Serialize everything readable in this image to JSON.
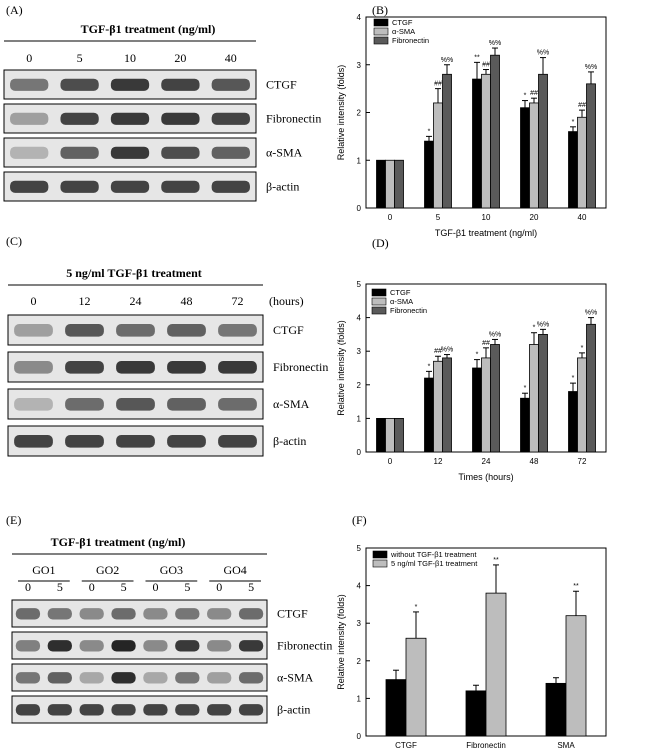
{
  "panels": {
    "A": {
      "label": "(A)",
      "header": "TGF-β1 treatment  (ng/ml)",
      "lanes": [
        "0",
        "5",
        "10",
        "20",
        "40"
      ],
      "rows": [
        "CTGF",
        "Fibronectin",
        "α-SMA",
        "β-actin"
      ]
    },
    "C": {
      "label": "(C)",
      "header": "5 ng/ml  TGF-β1 treatment",
      "lanes": [
        "0",
        "12",
        "24",
        "48",
        "72"
      ],
      "unit": "(hours)",
      "rows": [
        "CTGF",
        "Fibronectin",
        "α-SMA",
        "β-actin"
      ]
    },
    "E": {
      "label": "(E)",
      "header": "TGF-β1 treatment  (ng/ml)",
      "groups": [
        "GO1",
        "GO2",
        "GO3",
        "GO4"
      ],
      "lanes": [
        "0",
        "5",
        "0",
        "5",
        "0",
        "5",
        "0",
        "5"
      ],
      "rows": [
        "CTGF",
        "Fibronectin",
        "α-SMA",
        "β-actin"
      ]
    }
  },
  "chart_data": [
    {
      "panel": "(B)",
      "type": "bar",
      "categories": [
        "0",
        "5",
        "10",
        "20",
        "40"
      ],
      "series": [
        {
          "name": "CTGF",
          "values": [
            1.0,
            1.4,
            2.7,
            2.1,
            1.6
          ],
          "errors": [
            0,
            0.1,
            0.35,
            0.15,
            0.1
          ],
          "marks": [
            "",
            "*",
            "**",
            "*",
            "*"
          ]
        },
        {
          "name": "α-SMA",
          "values": [
            1.0,
            2.2,
            2.8,
            2.2,
            1.9
          ],
          "errors": [
            0,
            0.3,
            0.1,
            0.1,
            0.15
          ],
          "marks": [
            "",
            "##",
            "##",
            "##",
            "##"
          ]
        },
        {
          "name": "Fibronectin",
          "values": [
            1.0,
            2.8,
            3.2,
            2.8,
            2.6
          ],
          "errors": [
            0,
            0.2,
            0.15,
            0.35,
            0.25
          ],
          "marks": [
            "",
            "%%",
            "%%",
            "%%",
            "%%"
          ]
        }
      ],
      "xlabel": "TGF-β1 treatment (ng/ml)",
      "ylabel": "Relative intensity (folds)",
      "ylim": [
        0,
        4
      ],
      "yticks": [
        "0",
        "1",
        "2",
        "3",
        "4"
      ],
      "legend": "top-left"
    },
    {
      "panel": "(D)",
      "type": "bar",
      "categories": [
        "0",
        "12",
        "24",
        "48",
        "72"
      ],
      "series": [
        {
          "name": "CTGF",
          "values": [
            1.0,
            2.2,
            2.5,
            1.6,
            1.8
          ],
          "errors": [
            0,
            0.2,
            0.25,
            0.15,
            0.25
          ],
          "marks": [
            "",
            "*",
            "*",
            "*",
            "*"
          ]
        },
        {
          "name": "α-SMA",
          "values": [
            1.0,
            2.7,
            2.8,
            3.2,
            2.8
          ],
          "errors": [
            0,
            0.15,
            0.3,
            0.35,
            0.15
          ],
          "marks": [
            "",
            "##",
            "##",
            "*",
            "*"
          ]
        },
        {
          "name": "Fibronectin",
          "values": [
            1.0,
            2.8,
            3.2,
            3.5,
            3.8
          ],
          "errors": [
            0,
            0.1,
            0.15,
            0.15,
            0.2
          ],
          "marks": [
            "",
            "%%",
            "%%",
            "%%",
            "%%"
          ]
        }
      ],
      "xlabel": "Times (hours)",
      "ylabel": "Relative intensity (folds)",
      "ylim": [
        0,
        5
      ],
      "yticks": [
        "0",
        "1",
        "2",
        "3",
        "4",
        "5"
      ],
      "legend": "top-left"
    },
    {
      "panel": "(F)",
      "type": "bar",
      "categories": [
        "CTGF",
        "Fibronectin",
        "SMA"
      ],
      "series": [
        {
          "name": "without TGF-β1 treatment",
          "values": [
            1.5,
            1.2,
            1.4
          ],
          "errors": [
            0.25,
            0.15,
            0.15
          ],
          "marks": [
            "",
            "",
            ""
          ]
        },
        {
          "name": "5 ng/ml TGF-β1 treatment",
          "values": [
            2.6,
            3.8,
            3.2
          ],
          "errors": [
            0.7,
            0.75,
            0.65
          ],
          "marks": [
            "*",
            "**",
            "**"
          ]
        }
      ],
      "xlabel": "",
      "ylabel": "Relative intensity (folds)",
      "ylim": [
        0,
        5
      ],
      "yticks": [
        "0",
        "1",
        "2",
        "3",
        "4",
        "5"
      ],
      "legend": "top-left"
    }
  ],
  "colors": {
    "series_dark": "#000000",
    "series_light": "#bdbdbd",
    "series_mid": "#5a5a5a",
    "blot_bg": "#e6e6e6",
    "band": "#1a1a1a"
  }
}
